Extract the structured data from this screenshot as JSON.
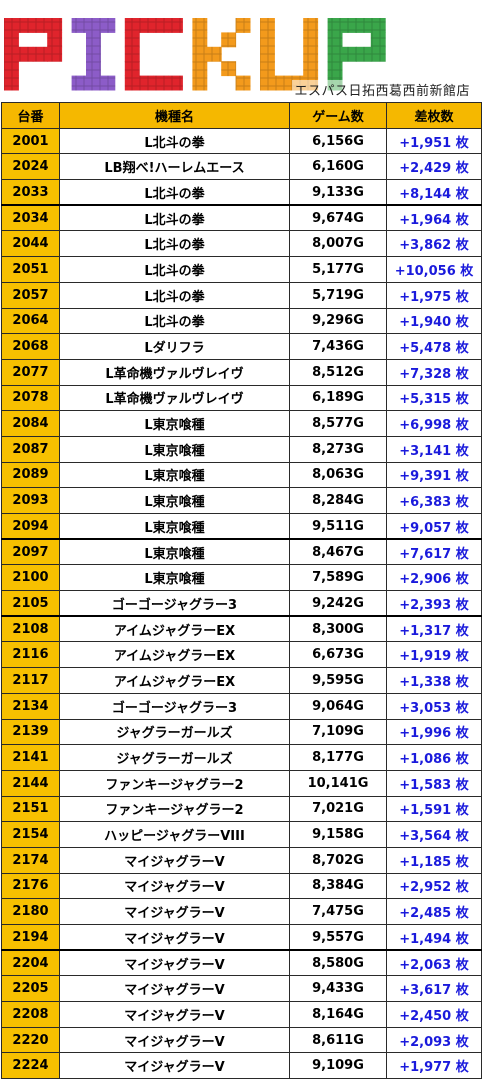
{
  "banner": {
    "logo_text": "PICKUP",
    "logo_colors": [
      "#e0242c",
      "#8c5cc8",
      "#e0242c",
      "#f39a1c",
      "#f39a1c",
      "#3aa64a"
    ],
    "subtitle": "エスパス日拓西葛西前新館店"
  },
  "table": {
    "headers": {
      "machine_no": "台番",
      "machine_name": "機種名",
      "games": "ゲーム数",
      "diff": "差枚数"
    },
    "rows": [
      {
        "no": "2001",
        "name": "L北斗の拳",
        "games": "6,156G",
        "diff": "+1,951 枚"
      },
      {
        "no": "2024",
        "name": "LB翔べ!ハーレムエース",
        "games": "6,160G",
        "diff": "+2,429 枚"
      },
      {
        "no": "2033",
        "name": "L北斗の拳",
        "games": "9,133G",
        "diff": "+8,144 枚"
      },
      {
        "no": "2034",
        "name": "L北斗の拳",
        "games": "9,674G",
        "diff": "+1,964 枚"
      },
      {
        "no": "2044",
        "name": "L北斗の拳",
        "games": "8,007G",
        "diff": "+3,862 枚"
      },
      {
        "no": "2051",
        "name": "L北斗の拳",
        "games": "5,177G",
        "diff": "+10,056 枚"
      },
      {
        "no": "2057",
        "name": "L北斗の拳",
        "games": "5,719G",
        "diff": "+1,975 枚"
      },
      {
        "no": "2064",
        "name": "L北斗の拳",
        "games": "9,296G",
        "diff": "+1,940 枚"
      },
      {
        "no": "2068",
        "name": "Lダリフラ",
        "games": "7,436G",
        "diff": "+5,478 枚"
      },
      {
        "no": "2077",
        "name": "L革命機ヴァルヴレイヴ",
        "games": "8,512G",
        "diff": "+7,328 枚"
      },
      {
        "no": "2078",
        "name": "L革命機ヴァルヴレイヴ",
        "games": "6,189G",
        "diff": "+5,315 枚"
      },
      {
        "no": "2084",
        "name": "L東京喰種",
        "games": "8,577G",
        "diff": "+6,998 枚"
      },
      {
        "no": "2087",
        "name": "L東京喰種",
        "games": "8,273G",
        "diff": "+3,141 枚"
      },
      {
        "no": "2089",
        "name": "L東京喰種",
        "games": "8,063G",
        "diff": "+9,391 枚"
      },
      {
        "no": "2093",
        "name": "L東京喰種",
        "games": "8,284G",
        "diff": "+6,383 枚"
      },
      {
        "no": "2094",
        "name": "L東京喰種",
        "games": "9,511G",
        "diff": "+9,057 枚"
      },
      {
        "no": "2097",
        "name": "L東京喰種",
        "games": "8,467G",
        "diff": "+7,617 枚"
      },
      {
        "no": "2100",
        "name": "L東京喰種",
        "games": "7,589G",
        "diff": "+2,906 枚"
      },
      {
        "no": "2105",
        "name": "ゴーゴージャグラー3",
        "games": "9,242G",
        "diff": "+2,393 枚"
      },
      {
        "no": "2108",
        "name": "アイムジャグラーEX",
        "games": "8,300G",
        "diff": "+1,317 枚"
      },
      {
        "no": "2116",
        "name": "アイムジャグラーEX",
        "games": "6,673G",
        "diff": "+1,919 枚"
      },
      {
        "no": "2117",
        "name": "アイムジャグラーEX",
        "games": "9,595G",
        "diff": "+1,338 枚"
      },
      {
        "no": "2134",
        "name": "ゴーゴージャグラー3",
        "games": "9,064G",
        "diff": "+3,053 枚"
      },
      {
        "no": "2139",
        "name": "ジャグラーガールズ",
        "games": "7,109G",
        "diff": "+1,996 枚"
      },
      {
        "no": "2141",
        "name": "ジャグラーガールズ",
        "games": "8,177G",
        "diff": "+1,086 枚"
      },
      {
        "no": "2144",
        "name": "ファンキージャグラー2",
        "games": "10,141G",
        "diff": "+1,583 枚"
      },
      {
        "no": "2151",
        "name": "ファンキージャグラー2",
        "games": "7,021G",
        "diff": "+1,591 枚"
      },
      {
        "no": "2154",
        "name": "ハッピージャグラーVIII",
        "games": "9,158G",
        "diff": "+3,564 枚"
      },
      {
        "no": "2174",
        "name": "マイジャグラーV",
        "games": "8,702G",
        "diff": "+1,185 枚"
      },
      {
        "no": "2176",
        "name": "マイジャグラーV",
        "games": "8,384G",
        "diff": "+2,952 枚"
      },
      {
        "no": "2180",
        "name": "マイジャグラーV",
        "games": "7,475G",
        "diff": "+2,485 枚"
      },
      {
        "no": "2194",
        "name": "マイジャグラーV",
        "games": "9,557G",
        "diff": "+1,494 枚"
      },
      {
        "no": "2204",
        "name": "マイジャグラーV",
        "games": "8,580G",
        "diff": "+2,063 枚"
      },
      {
        "no": "2205",
        "name": "マイジャグラーV",
        "games": "9,433G",
        "diff": "+3,617 枚"
      },
      {
        "no": "2208",
        "name": "マイジャグラーV",
        "games": "8,164G",
        "diff": "+2,450 枚"
      },
      {
        "no": "2220",
        "name": "マイジャグラーV",
        "games": "8,611G",
        "diff": "+2,093 枚"
      },
      {
        "no": "2224",
        "name": "マイジャグラーV",
        "games": "9,109G",
        "diff": "+1,977 枚"
      }
    ]
  }
}
